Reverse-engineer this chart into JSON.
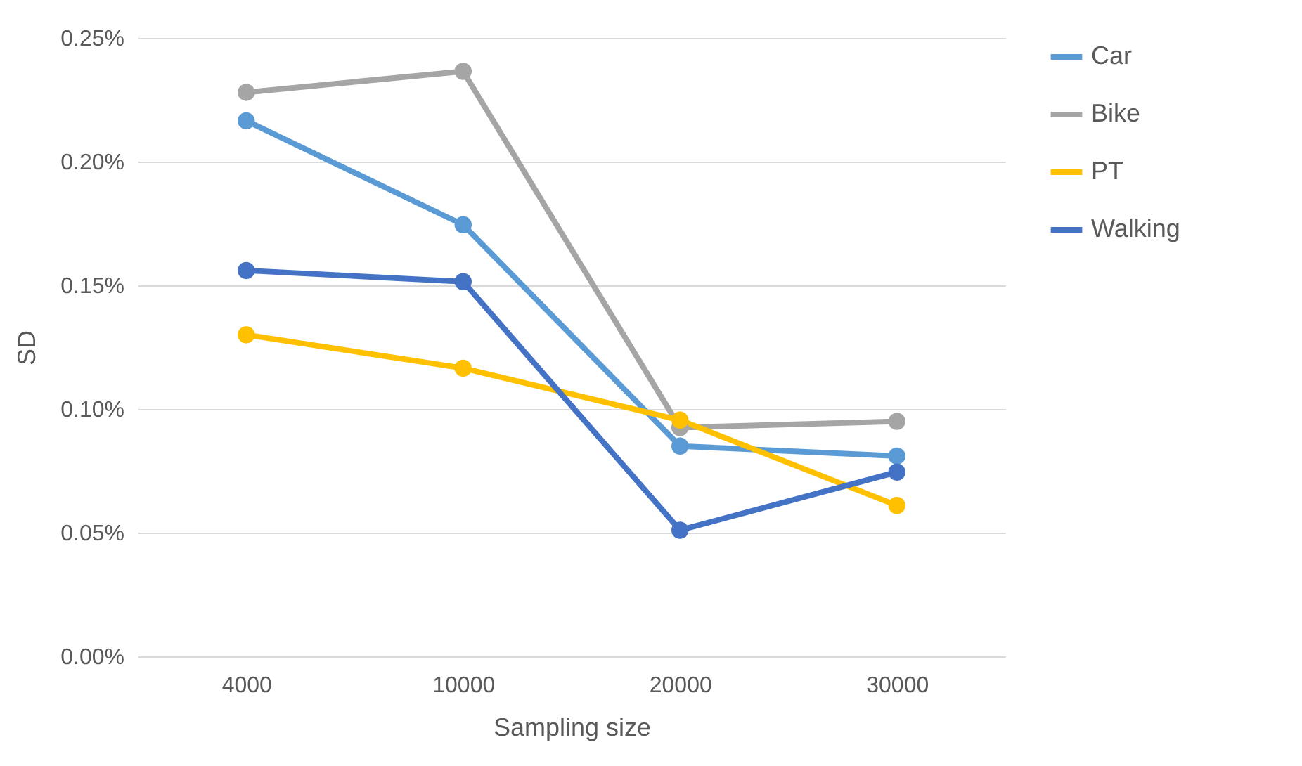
{
  "chart_data": {
    "type": "line",
    "xlabel": "Sampling size",
    "ylabel": "SD",
    "categories": [
      "4000",
      "10000",
      "20000",
      "30000"
    ],
    "series": [
      {
        "name": "Car",
        "color": "#5b9bd5",
        "values": [
          0.2165,
          0.1745,
          0.085,
          0.081
        ]
      },
      {
        "name": "Bike",
        "color": "#a5a5a5",
        "values": [
          0.228,
          0.2365,
          0.0925,
          0.095
        ]
      },
      {
        "name": "PT",
        "color": "#ffc000",
        "values": [
          0.13,
          0.1165,
          0.0955,
          0.061
        ]
      },
      {
        "name": "Walking",
        "color": "#4472c4",
        "values": [
          0.156,
          0.1515,
          0.051,
          0.0745
        ]
      }
    ],
    "ylim": [
      0,
      0.25
    ],
    "yticks": [
      {
        "value": 0,
        "label": "0.00%"
      },
      {
        "value": 0.05,
        "label": "0.05%"
      },
      {
        "value": 0.1,
        "label": "0.10%"
      },
      {
        "value": 0.15,
        "label": "0.15%"
      },
      {
        "value": 0.2,
        "label": "0.20%"
      },
      {
        "value": 0.25,
        "label": "0.25%"
      }
    ],
    "grid": "y",
    "legend": "right",
    "marker": "circle",
    "line_style": "solid"
  }
}
